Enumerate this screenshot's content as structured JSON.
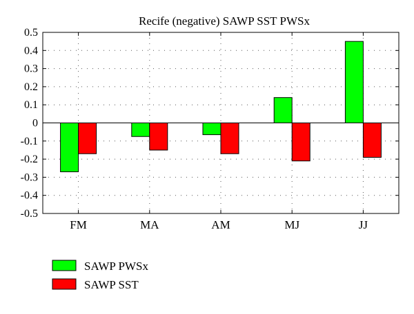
{
  "chart_data": {
    "type": "bar",
    "title": "Recife (negative) SAWP SST PWSx",
    "xlabel": "",
    "ylabel": "",
    "categories": [
      "FM",
      "MA",
      "AM",
      "MJ",
      "JJ"
    ],
    "ylim": [
      -0.5,
      0.5
    ],
    "yticks": [
      0.5,
      0.4,
      0.3,
      0.2,
      0.1,
      0,
      -0.1,
      -0.2,
      -0.3,
      -0.4,
      -0.5
    ],
    "ytick_labels": [
      "0.5",
      "0.4",
      "0.3",
      "0.2",
      "0.1",
      "0",
      "-0.1",
      "-0.2",
      "-0.3",
      "-0.4",
      "-0.5"
    ],
    "grid": true,
    "legend_position": "bottom-left, below plot",
    "series": [
      {
        "name": "SAWP PWSx",
        "color": "#00ff00",
        "values": [
          -0.27,
          -0.075,
          -0.065,
          0.14,
          0.45
        ]
      },
      {
        "name": "SAWP SST",
        "color": "#ff0000",
        "values": [
          -0.17,
          -0.15,
          -0.17,
          -0.21,
          -0.19
        ]
      }
    ]
  }
}
